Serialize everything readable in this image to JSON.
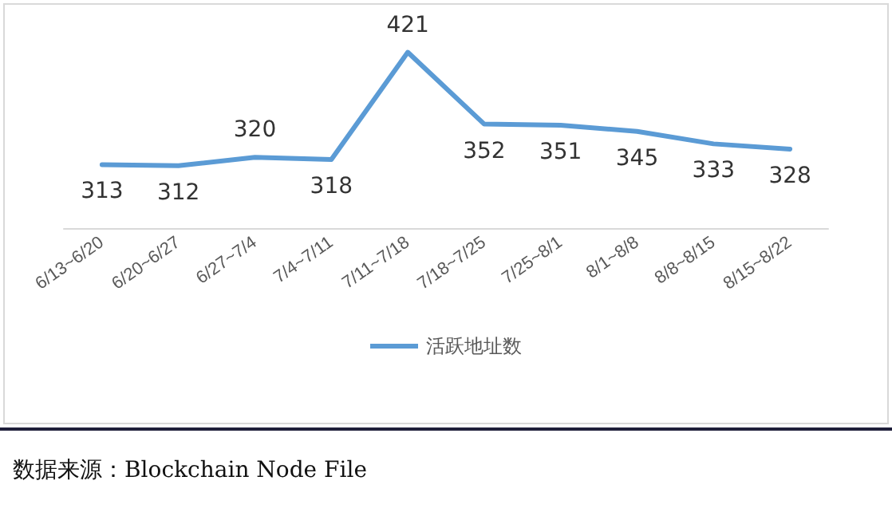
{
  "chart_data": {
    "type": "line",
    "categories": [
      "6/13~6/20",
      "6/20~6/27",
      "6/27~7/4",
      "7/4~7/11",
      "7/11~7/18",
      "7/18~7/25",
      "7/25~8/1",
      "8/1~8/8",
      "8/8~8/15",
      "8/15~8/22"
    ],
    "series": [
      {
        "name": "活跃地址数",
        "color": "#5b9bd5",
        "values": [
          313,
          312,
          320,
          318,
          421,
          352,
          351,
          345,
          333,
          328
        ]
      }
    ],
    "data_labels": true,
    "legend": "bottom",
    "marker": "none",
    "line_style": "solid",
    "annotations": [
      "数据来源：Blockchain Node File"
    ]
  }
}
